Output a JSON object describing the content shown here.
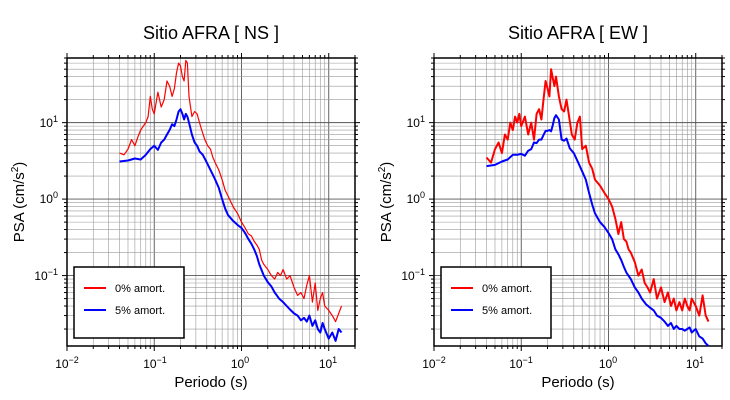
{
  "chart_data": [
    {
      "type": "line",
      "title": "Sitio AFRA [ NS ]",
      "xlabel": "Periodo (s)",
      "ylabel_main": "PSA (cm/s",
      "ylabel_sup": "2",
      "ylabel_end": ")",
      "xscale": "log",
      "yscale": "log",
      "xlim": [
        0.01,
        20
      ],
      "ylim": [
        0.012,
        70
      ],
      "x_ticks": [
        {
          "value": 0.01,
          "base": "10",
          "exp": "−2"
        },
        {
          "value": 0.1,
          "base": "10",
          "exp": "−1"
        },
        {
          "value": 1,
          "base": "10",
          "exp": "0"
        },
        {
          "value": 10,
          "base": "10",
          "exp": "1"
        }
      ],
      "y_ticks": [
        {
          "value": 0.1,
          "base": "10",
          "exp": "−1"
        },
        {
          "value": 1,
          "base": "10",
          "exp": "0"
        },
        {
          "value": 10,
          "base": "10",
          "exp": "1"
        }
      ],
      "grid": true,
      "legend_position": "bottom-left",
      "series": [
        {
          "name": "0% amort.",
          "color": "#ff0000",
          "x": [
            0.04,
            0.045,
            0.05,
            0.055,
            0.06,
            0.065,
            0.07,
            0.075,
            0.08,
            0.085,
            0.09,
            0.095,
            0.1,
            0.11,
            0.12,
            0.13,
            0.14,
            0.15,
            0.16,
            0.17,
            0.18,
            0.19,
            0.2,
            0.21,
            0.22,
            0.23,
            0.24,
            0.25,
            0.27,
            0.29,
            0.31,
            0.33,
            0.35,
            0.38,
            0.41,
            0.44,
            0.47,
            0.5,
            0.55,
            0.6,
            0.65,
            0.7,
            0.8,
            0.9,
            1.0,
            1.1,
            1.2,
            1.3,
            1.4,
            1.5,
            1.6,
            1.7,
            1.8,
            2.0,
            2.2,
            2.4,
            2.6,
            2.8,
            3.0,
            3.3,
            3.6,
            4.0,
            4.4,
            4.8,
            5.2,
            5.6,
            6.0,
            6.5,
            7.0,
            7.5,
            8.0,
            8.5,
            9.0,
            10,
            11,
            12,
            13,
            14
          ],
          "y": [
            4.0,
            3.8,
            4.5,
            6.0,
            5.0,
            6.5,
            8.0,
            9.0,
            10,
            12,
            22,
            15,
            13,
            25,
            16,
            20,
            35,
            30,
            22,
            28,
            45,
            60,
            55,
            40,
            35,
            65,
            60,
            22,
            12,
            14,
            13,
            10,
            8,
            6,
            5,
            4.5,
            3.5,
            3.0,
            2.4,
            1.8,
            1.3,
            1.1,
            0.8,
            0.65,
            0.5,
            0.42,
            0.35,
            0.33,
            0.28,
            0.25,
            0.22,
            0.16,
            0.14,
            0.12,
            0.1,
            0.09,
            0.11,
            0.1,
            0.12,
            0.09,
            0.1,
            0.07,
            0.055,
            0.06,
            0.05,
            0.075,
            0.1,
            0.045,
            0.08,
            0.035,
            0.05,
            0.06,
            0.04,
            0.035,
            0.03,
            0.025,
            0.032,
            0.04
          ]
        },
        {
          "name": "5% amort.",
          "color": "#0000ff",
          "x": [
            0.04,
            0.05,
            0.06,
            0.07,
            0.08,
            0.09,
            0.1,
            0.11,
            0.12,
            0.13,
            0.14,
            0.15,
            0.16,
            0.17,
            0.18,
            0.19,
            0.2,
            0.21,
            0.22,
            0.23,
            0.24,
            0.25,
            0.27,
            0.29,
            0.31,
            0.33,
            0.36,
            0.4,
            0.45,
            0.5,
            0.55,
            0.6,
            0.65,
            0.7,
            0.8,
            0.9,
            1.0,
            1.1,
            1.2,
            1.3,
            1.4,
            1.5,
            1.6,
            1.8,
            2.0,
            2.2,
            2.4,
            2.7,
            3.0,
            3.3,
            3.6,
            4.0,
            4.4,
            4.8,
            5.2,
            5.6,
            6.0,
            6.5,
            7.0,
            7.5,
            8.0,
            8.5,
            9.0,
            10,
            11,
            12,
            13,
            14
          ],
          "y": [
            3.1,
            3.2,
            3.4,
            3.3,
            3.8,
            4.5,
            5.0,
            4.4,
            5.5,
            6.0,
            7.0,
            8.0,
            9.5,
            9.0,
            11,
            14,
            15,
            13,
            11,
            13,
            12,
            10,
            7.0,
            5.5,
            5.0,
            4.2,
            3.8,
            3.0,
            2.3,
            1.8,
            1.4,
            1.0,
            0.75,
            0.62,
            0.52,
            0.46,
            0.42,
            0.36,
            0.3,
            0.26,
            0.22,
            0.18,
            0.14,
            0.1,
            0.082,
            0.072,
            0.06,
            0.05,
            0.045,
            0.04,
            0.036,
            0.032,
            0.03,
            0.026,
            0.028,
            0.025,
            0.03,
            0.022,
            0.026,
            0.02,
            0.018,
            0.024,
            0.02,
            0.015,
            0.018,
            0.014,
            0.02,
            0.018
          ]
        }
      ]
    },
    {
      "type": "line",
      "title": "Sitio AFRA [ EW ]",
      "xlabel": "Periodo (s)",
      "ylabel_main": "PSA (cm/s",
      "ylabel_sup": "2",
      "ylabel_end": ")",
      "xscale": "log",
      "yscale": "log",
      "xlim": [
        0.01,
        20
      ],
      "ylim": [
        0.012,
        70
      ],
      "x_ticks": [
        {
          "value": 0.01,
          "base": "10",
          "exp": "−2"
        },
        {
          "value": 0.1,
          "base": "10",
          "exp": "−1"
        },
        {
          "value": 1,
          "base": "10",
          "exp": "0"
        },
        {
          "value": 10,
          "base": "10",
          "exp": "1"
        }
      ],
      "y_ticks": [
        {
          "value": 0.1,
          "base": "10",
          "exp": "−1"
        },
        {
          "value": 1,
          "base": "10",
          "exp": "0"
        },
        {
          "value": 10,
          "base": "10",
          "exp": "1"
        }
      ],
      "grid": true,
      "legend_position": "bottom-left",
      "series": [
        {
          "name": "0% amort.",
          "color": "#ff0000",
          "x": [
            0.04,
            0.045,
            0.05,
            0.055,
            0.06,
            0.065,
            0.07,
            0.075,
            0.08,
            0.085,
            0.09,
            0.095,
            0.1,
            0.11,
            0.12,
            0.13,
            0.14,
            0.15,
            0.16,
            0.17,
            0.18,
            0.19,
            0.2,
            0.21,
            0.22,
            0.23,
            0.24,
            0.25,
            0.27,
            0.29,
            0.31,
            0.33,
            0.35,
            0.38,
            0.41,
            0.44,
            0.47,
            0.5,
            0.55,
            0.6,
            0.65,
            0.7,
            0.8,
            0.9,
            1.0,
            1.1,
            1.2,
            1.3,
            1.4,
            1.5,
            1.6,
            1.7,
            1.8,
            2.0,
            2.2,
            2.4,
            2.6,
            2.8,
            3.0,
            3.3,
            3.6,
            4.0,
            4.4,
            4.8,
            5.2,
            5.6,
            6.0,
            6.5,
            7.0,
            7.5,
            8.0,
            8.5,
            9.0,
            10,
            11,
            12,
            13,
            14
          ],
          "y": [
            3.5,
            3.0,
            4.5,
            5.5,
            4.0,
            7.0,
            6.0,
            10,
            8.0,
            12,
            10,
            13,
            9.0,
            12,
            7.0,
            10,
            6.0,
            13,
            15,
            11,
            20,
            35,
            28,
            22,
            50,
            38,
            30,
            40,
            22,
            15,
            14,
            20,
            13,
            7.0,
            6.0,
            10,
            12,
            4.5,
            5.0,
            3.0,
            2.5,
            1.8,
            1.5,
            1.2,
            1.0,
            0.8,
            0.55,
            0.35,
            0.5,
            0.3,
            0.28,
            0.22,
            0.2,
            0.15,
            0.1,
            0.12,
            0.08,
            0.07,
            0.06,
            0.09,
            0.05,
            0.07,
            0.045,
            0.06,
            0.04,
            0.05,
            0.035,
            0.045,
            0.035,
            0.05,
            0.04,
            0.035,
            0.05,
            0.04,
            0.03,
            0.055,
            0.03,
            0.025
          ]
        },
        {
          "name": "5% amort.",
          "color": "#0000ff",
          "x": [
            0.04,
            0.05,
            0.06,
            0.07,
            0.08,
            0.09,
            0.1,
            0.11,
            0.12,
            0.13,
            0.14,
            0.15,
            0.16,
            0.17,
            0.18,
            0.19,
            0.2,
            0.21,
            0.22,
            0.23,
            0.24,
            0.25,
            0.27,
            0.29,
            0.31,
            0.33,
            0.36,
            0.4,
            0.45,
            0.5,
            0.55,
            0.6,
            0.65,
            0.7,
            0.8,
            0.9,
            1.0,
            1.1,
            1.2,
            1.3,
            1.4,
            1.5,
            1.6,
            1.8,
            2.0,
            2.2,
            2.4,
            2.7,
            3.0,
            3.3,
            3.6,
            4.0,
            4.4,
            4.8,
            5.2,
            5.6,
            6.0,
            6.5,
            7.0,
            7.5,
            8.0,
            8.5,
            9.0,
            10,
            11,
            12,
            13,
            14
          ],
          "y": [
            2.7,
            2.8,
            3.1,
            3.3,
            3.8,
            3.8,
            3.9,
            3.7,
            4.3,
            4.5,
            5.5,
            5.4,
            6.0,
            6.0,
            6.9,
            7.8,
            7.8,
            8.0,
            7.7,
            9.3,
            11.5,
            12.5,
            11,
            6.0,
            5.8,
            6.2,
            4.6,
            4.0,
            3.0,
            2.3,
            1.8,
            1.2,
            0.85,
            0.65,
            0.5,
            0.43,
            0.36,
            0.3,
            0.22,
            0.19,
            0.16,
            0.13,
            0.11,
            0.09,
            0.07,
            0.06,
            0.05,
            0.042,
            0.038,
            0.035,
            0.03,
            0.028,
            0.025,
            0.022,
            0.024,
            0.02,
            0.022,
            0.02,
            0.02,
            0.019,
            0.02,
            0.021,
            0.018,
            0.02,
            0.016,
            0.015,
            0.013,
            0.012
          ]
        }
      ]
    }
  ]
}
